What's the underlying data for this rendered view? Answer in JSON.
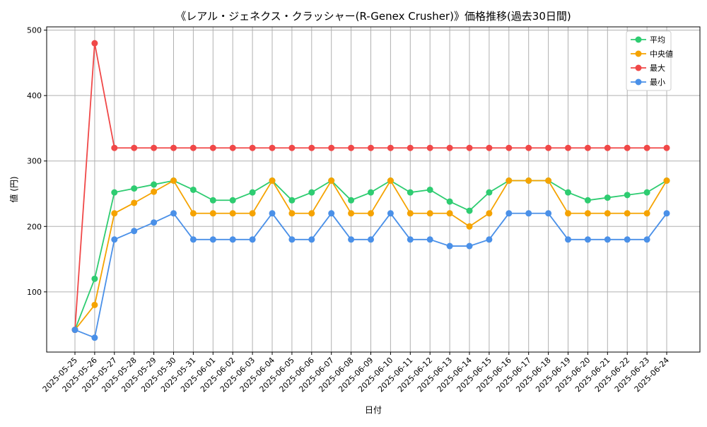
{
  "chart_data": {
    "type": "line",
    "title": "《レアル・ジェネクス・クラッシャー(R-Genex Crusher)》価格推移(過去30日間)",
    "xlabel": "日付",
    "ylabel": "値 (円)",
    "ylim": [
      8,
      505
    ],
    "yticks": [
      100,
      200,
      300,
      400,
      500
    ],
    "grid": true,
    "legend_position": "top-right",
    "categories": [
      "2025-05-25",
      "2025-05-26",
      "2025-05-27",
      "2025-05-28",
      "2025-05-29",
      "2025-05-30",
      "2025-05-31",
      "2025-06-01",
      "2025-06-02",
      "2025-06-03",
      "2025-06-04",
      "2025-06-05",
      "2025-06-06",
      "2025-06-07",
      "2025-06-08",
      "2025-06-09",
      "2025-06-10",
      "2025-06-11",
      "2025-06-12",
      "2025-06-13",
      "2025-06-14",
      "2025-06-15",
      "2025-06-16",
      "2025-06-17",
      "2025-06-18",
      "2025-06-19",
      "2025-06-20",
      "2025-06-21",
      "2025-06-22",
      "2025-06-23",
      "2025-06-24"
    ],
    "series": [
      {
        "name": "平均",
        "color": "#2ecc71",
        "values": [
          42,
          120,
          252,
          258,
          264,
          270,
          256,
          240,
          240,
          252,
          270,
          240,
          252,
          270,
          240,
          252,
          270,
          252,
          256,
          238,
          224,
          252,
          270,
          270,
          270,
          252,
          240,
          244,
          248,
          252,
          270
        ]
      },
      {
        "name": "中央値",
        "color": "#f5a300",
        "values": [
          42,
          80,
          220,
          236,
          253,
          270,
          220,
          220,
          220,
          220,
          270,
          220,
          220,
          270,
          220,
          220,
          270,
          220,
          220,
          220,
          200,
          220,
          270,
          270,
          270,
          220,
          220,
          220,
          220,
          220,
          270
        ]
      },
      {
        "name": "最大",
        "color": "#f04848",
        "values": [
          42,
          480,
          320,
          320,
          320,
          320,
          320,
          320,
          320,
          320,
          320,
          320,
          320,
          320,
          320,
          320,
          320,
          320,
          320,
          320,
          320,
          320,
          320,
          320,
          320,
          320,
          320,
          320,
          320,
          320,
          320
        ]
      },
      {
        "name": "最小",
        "color": "#4a90e8",
        "values": [
          42,
          30,
          180,
          193,
          206,
          220,
          180,
          180,
          180,
          180,
          220,
          180,
          180,
          220,
          180,
          180,
          220,
          180,
          180,
          170,
          170,
          180,
          220,
          220,
          220,
          180,
          180,
          180,
          180,
          180,
          220
        ]
      }
    ]
  }
}
